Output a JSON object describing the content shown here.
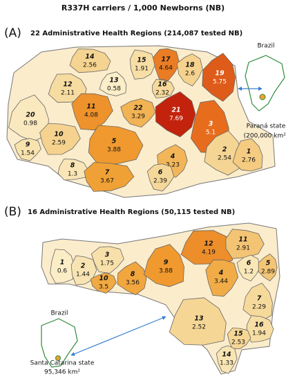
{
  "title": "R337H carriers / 1,000 Newborns (NB)",
  "panels": [
    {
      "letter": "(A)",
      "heading": "22 Administrative Health Regions (214,087 tested NB)",
      "inset_country": "Brazil",
      "inset_label": "Paraná state",
      "inset_area": "(200,000 km²)",
      "regions": [
        {
          "id": "14",
          "value": 2.56
        },
        {
          "id": "15",
          "value": 1.91
        },
        {
          "id": "17",
          "value": 4.64
        },
        {
          "id": "18",
          "value": 2.6
        },
        {
          "id": "19",
          "value": 5.75
        },
        {
          "id": "13",
          "value": 0.58
        },
        {
          "id": "12",
          "value": 2.11
        },
        {
          "id": "16",
          "value": 2.32
        },
        {
          "id": "11",
          "value": 4.08
        },
        {
          "id": "22",
          "value": 3.29
        },
        {
          "id": "21",
          "value": 7.69
        },
        {
          "id": "20",
          "value": 0.98
        },
        {
          "id": "3",
          "value": 5.1
        },
        {
          "id": "5",
          "value": 3.88
        },
        {
          "id": "10",
          "value": 2.59
        },
        {
          "id": "9",
          "value": 1.54
        },
        {
          "id": "4",
          "value": 3.23
        },
        {
          "id": "2",
          "value": 2.54
        },
        {
          "id": "1",
          "value": 2.76
        },
        {
          "id": "8",
          "value": 1.3
        },
        {
          "id": "7",
          "value": 3.67
        },
        {
          "id": "6",
          "value": 2.39
        }
      ]
    },
    {
      "letter": "(B)",
      "heading": "16 Administrative Health Regions (50,115 tested NB)",
      "inset_country": "Brazil",
      "inset_label": "Santa Catarina state",
      "inset_area": "95,346 km²",
      "regions": [
        {
          "id": "1",
          "value": 0.6
        },
        {
          "id": "2",
          "value": 1.44
        },
        {
          "id": "3",
          "value": 1.75
        },
        {
          "id": "10",
          "value": 3.5
        },
        {
          "id": "8",
          "value": 3.56
        },
        {
          "id": "9",
          "value": 3.88
        },
        {
          "id": "12",
          "value": 4.19
        },
        {
          "id": "11",
          "value": 2.91
        },
        {
          "id": "4",
          "value": 3.44
        },
        {
          "id": "6",
          "value": 1.2
        },
        {
          "id": "5",
          "value": 2.89
        },
        {
          "id": "7",
          "value": 2.29
        },
        {
          "id": "13",
          "value": 2.52
        },
        {
          "id": "16",
          "value": 1.94
        },
        {
          "id": "15",
          "value": 2.53
        },
        {
          "id": "14",
          "value": 1.33
        }
      ]
    }
  ]
}
